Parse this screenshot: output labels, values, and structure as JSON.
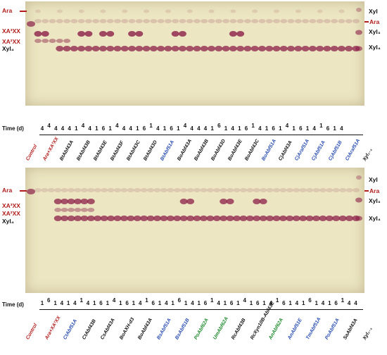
{
  "labels": {
    "ara": "Ara",
    "xa3xx": "XA³XX",
    "xa2xx": "XA²XX",
    "xyl4": "Xyl₄",
    "xyl": "Xyl",
    "xyl3": "Xyl₃",
    "time_axis": "Time (d)"
  },
  "top_panel": {
    "day_labels": [
      "4",
      "4",
      "4",
      "4",
      "4",
      "1",
      "4",
      "4",
      "1",
      "6",
      "1",
      "4",
      "4",
      "4",
      "1",
      "6",
      "1",
      "4",
      "1",
      "6",
      "1",
      "4",
      "4",
      "4",
      "4",
      "1",
      "6",
      "1",
      "4",
      "1",
      "6",
      "1",
      "4",
      "1",
      "6",
      "1",
      "4",
      "1",
      "6",
      "1",
      "4",
      "1",
      "6",
      "1",
      "4"
    ],
    "lanes": [
      {
        "label": "Control",
        "color": "red"
      },
      {
        "label": "Ara+XA³XX",
        "color": "red"
      },
      {
        "label": "BtAbf43A",
        "color": "black"
      },
      {
        "label": "BtAbf43B",
        "color": "black"
      },
      {
        "label": "BtAbf43E",
        "color": "black"
      },
      {
        "label": "BtAbf43F",
        "color": "black"
      },
      {
        "label": "BtAbf43C",
        "color": "black"
      },
      {
        "label": "BtAbf43D",
        "color": "black"
      },
      {
        "label": "BtAbf51A",
        "color": "blue"
      },
      {
        "label": "BoAbf43A",
        "color": "black"
      },
      {
        "label": "BoAbf43B",
        "color": "black"
      },
      {
        "label": "BoAbf43D",
        "color": "black"
      },
      {
        "label": "BoAbf43E",
        "color": "black"
      },
      {
        "label": "BoAbf43C",
        "color": "black"
      },
      {
        "label": "BoAbf51A",
        "color": "blue"
      },
      {
        "label": "CjAbf43A",
        "color": "black"
      },
      {
        "label": "CjAraf51A",
        "color": "blue"
      },
      {
        "label": "CjAbf51A",
        "color": "blue"
      },
      {
        "label": "CjAbf51B",
        "color": "blue"
      },
      {
        "label": "CtAraf51A",
        "color": "blue"
      },
      {
        "label": "Xyl₁₋₄",
        "color": "black"
      }
    ]
  },
  "bottom_panel": {
    "day_labels": [
      "1",
      "6",
      "1",
      "4",
      "1",
      "4",
      "1",
      "4",
      "1",
      "6",
      "1",
      "4",
      "1",
      "6",
      "1",
      "4",
      "1",
      "6",
      "1",
      "4",
      "1",
      "6",
      "1",
      "4",
      "1",
      "6",
      "1",
      "4",
      "1",
      "6",
      "1",
      "4",
      "1",
      "6",
      "1",
      "4",
      "1",
      "6",
      "1",
      "4",
      "1",
      "6",
      "1",
      "4",
      "1",
      "6",
      "1",
      "4",
      "4"
    ],
    "lanes": [
      {
        "label": "Control",
        "color": "red"
      },
      {
        "label": "Ara+XA²XX",
        "color": "red"
      },
      {
        "label": "CtAbf51A",
        "color": "blue"
      },
      {
        "label": "CtAbf43B",
        "color": "black"
      },
      {
        "label": "CsAbf43A",
        "color": "black"
      },
      {
        "label": "BoAXH-d3",
        "color": "black"
      },
      {
        "label": "BoAbf43A",
        "color": "black"
      },
      {
        "label": "BsAbf51A",
        "color": "blue"
      },
      {
        "label": "BsAbf51B",
        "color": "blue"
      },
      {
        "label": "PoAbf62A",
        "color": "green"
      },
      {
        "label": "UmAbf62A",
        "color": "green"
      },
      {
        "label": "RcAbf43B",
        "color": "black"
      },
      {
        "label": "RcXyn10B-Abf43E",
        "color": "black"
      },
      {
        "label": "AnAbf62A",
        "color": "green"
      },
      {
        "label": "AnAbf51E",
        "color": "blue"
      },
      {
        "label": "TmAbf51A",
        "color": "blue"
      },
      {
        "label": "PoAbf51A",
        "color": "blue"
      },
      {
        "label": "SaAbf43A",
        "color": "black"
      },
      {
        "label": "Xyl₁₋₄",
        "color": "black"
      }
    ]
  },
  "colors": {
    "plate": "#ece6c2",
    "spot": "#8c1f48",
    "label_red": "#b11d1d",
    "label_blue": "#2b4fb0",
    "label_green": "#1f8a2e"
  }
}
